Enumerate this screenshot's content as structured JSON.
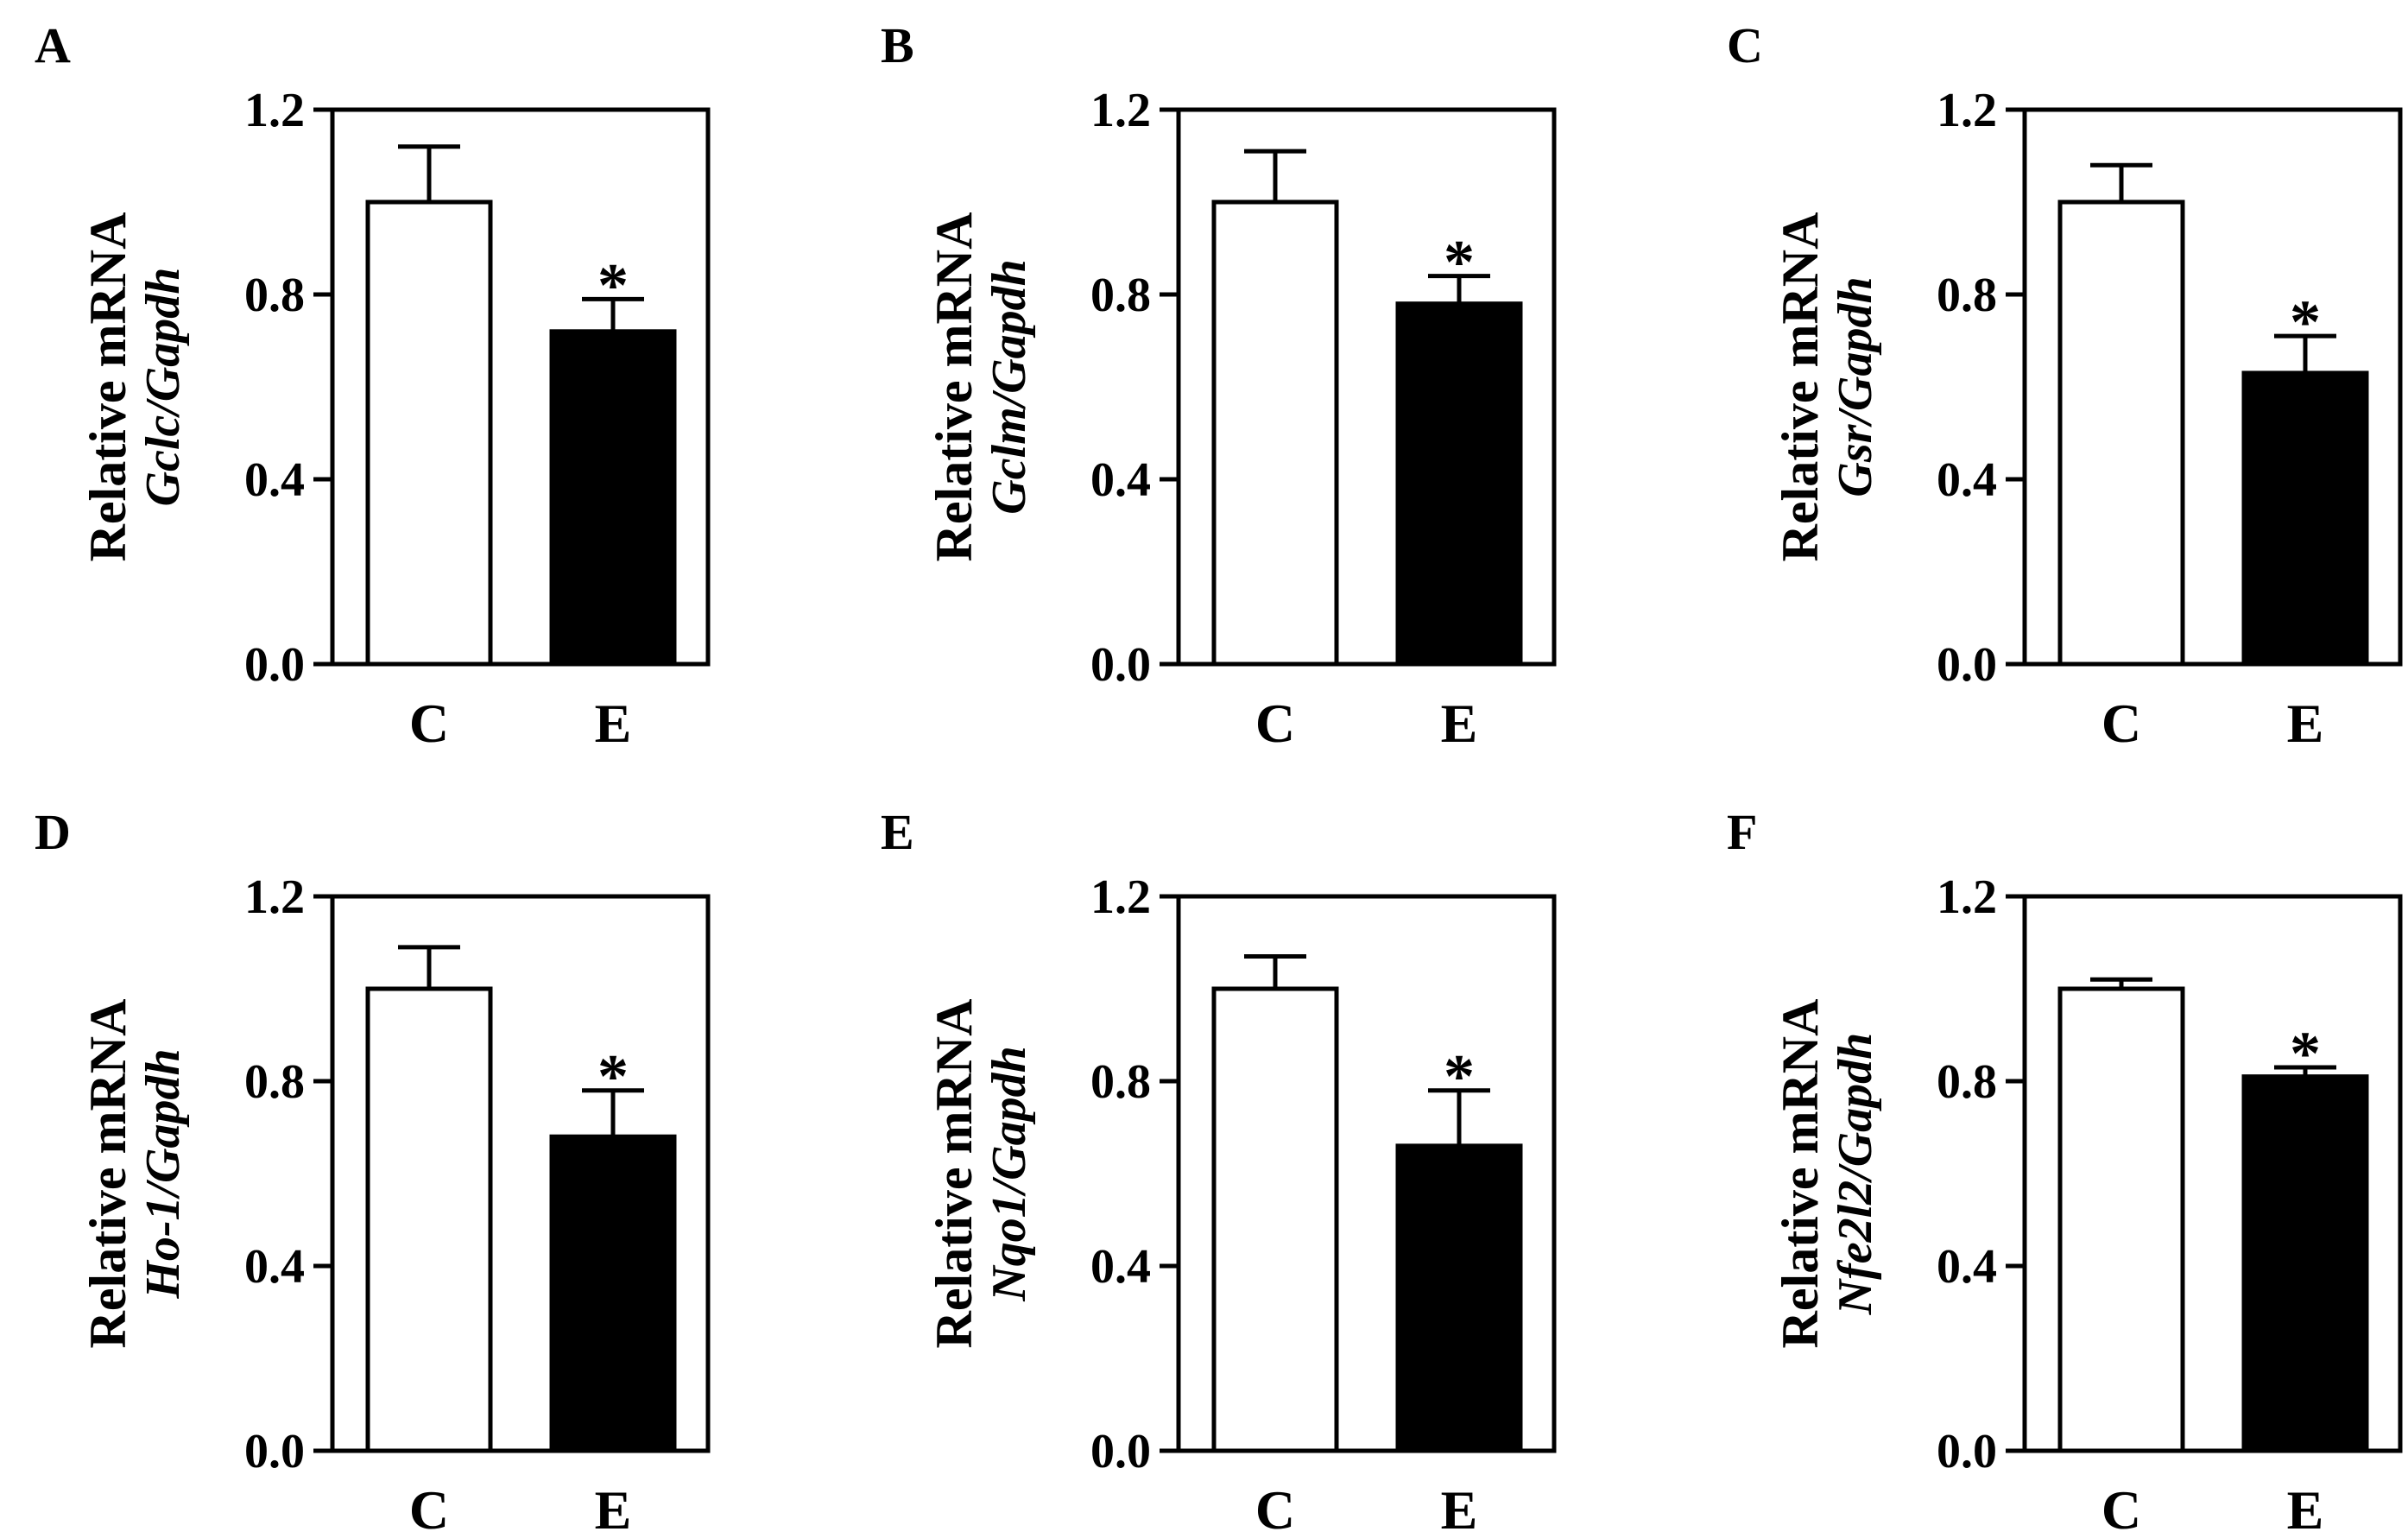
{
  "figure": {
    "background": "#ffffff",
    "axis_color": "#000000",
    "bar_colors": {
      "C": "#ffffff",
      "E": "#000000"
    }
  },
  "chart_data": [
    {
      "panel": "A",
      "type": "bar",
      "categories": [
        "C",
        "E"
      ],
      "values": [
        1.0,
        0.72
      ],
      "errors": [
        0.12,
        0.07
      ],
      "significance": [
        "",
        "*"
      ],
      "ylabel": "Relative mRNA",
      "ylabel_gene": "Gclc/Gapdh",
      "ylim": [
        0,
        1.2
      ],
      "yticks": [
        "0.0",
        "0.4",
        "0.8",
        "1.2"
      ],
      "ytick_values": [
        0,
        0.4,
        0.8,
        1.2
      ]
    },
    {
      "panel": "B",
      "type": "bar",
      "categories": [
        "C",
        "E"
      ],
      "values": [
        1.0,
        0.78
      ],
      "errors": [
        0.11,
        0.06
      ],
      "significance": [
        "",
        "*"
      ],
      "ylabel": "Relative mRNA",
      "ylabel_gene": "Gclm/Gapdh",
      "ylim": [
        0,
        1.2
      ],
      "yticks": [
        "0.0",
        "0.4",
        "0.8",
        "1.2"
      ],
      "ytick_values": [
        0,
        0.4,
        0.8,
        1.2
      ]
    },
    {
      "panel": "C",
      "type": "bar",
      "categories": [
        "C",
        "E"
      ],
      "values": [
        1.0,
        0.63
      ],
      "errors": [
        0.08,
        0.08
      ],
      "significance": [
        "",
        "*"
      ],
      "ylabel": "Relative mRNA",
      "ylabel_gene": "Gsr/Gapdh",
      "ylim": [
        0,
        1.2
      ],
      "yticks": [
        "0.0",
        "0.4",
        "0.8",
        "1.2"
      ],
      "ytick_values": [
        0,
        0.4,
        0.8,
        1.2
      ]
    },
    {
      "panel": "D",
      "type": "bar",
      "categories": [
        "C",
        "E"
      ],
      "values": [
        1.0,
        0.68
      ],
      "errors": [
        0.09,
        0.1
      ],
      "significance": [
        "",
        "*"
      ],
      "ylabel": "Relative mRNA",
      "ylabel_gene": "Ho-1/Gapdh",
      "ylim": [
        0,
        1.2
      ],
      "yticks": [
        "0.0",
        "0.4",
        "0.8",
        "1.2"
      ],
      "ytick_values": [
        0,
        0.4,
        0.8,
        1.2
      ]
    },
    {
      "panel": "E",
      "type": "bar",
      "categories": [
        "C",
        "E"
      ],
      "values": [
        1.0,
        0.66
      ],
      "errors": [
        0.07,
        0.12
      ],
      "significance": [
        "",
        "*"
      ],
      "ylabel": "Relative mRNA",
      "ylabel_gene": "Nqo1/Gapdh",
      "ylim": [
        0,
        1.2
      ],
      "yticks": [
        "0.0",
        "0.4",
        "0.8",
        "1.2"
      ],
      "ytick_values": [
        0,
        0.4,
        0.8,
        1.2
      ]
    },
    {
      "panel": "F",
      "type": "bar",
      "categories": [
        "C",
        "E"
      ],
      "values": [
        1.0,
        0.81
      ],
      "errors": [
        0.02,
        0.02
      ],
      "significance": [
        "",
        "*"
      ],
      "ylabel": "Relative mRNA",
      "ylabel_gene": "Nfe2l2/Gapdh",
      "ylim": [
        0,
        1.2
      ],
      "yticks": [
        "0.0",
        "0.4",
        "0.8",
        "1.2"
      ],
      "ytick_values": [
        0,
        0.4,
        0.8,
        1.2
      ]
    }
  ]
}
